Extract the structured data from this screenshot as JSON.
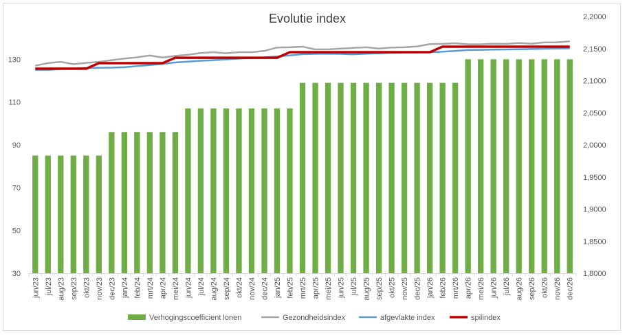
{
  "chart_data": {
    "type": "bar",
    "title": "Evolutie index",
    "xlabel": "",
    "ylabel": "",
    "categories": [
      "jun/23",
      "jul/23",
      "aug/23",
      "sep/23",
      "okt/23",
      "nov/23",
      "dec/23",
      "jan/24",
      "feb/24",
      "mrt/24",
      "apr/24",
      "mei/24",
      "jun/24",
      "jul/24",
      "aug/24",
      "sep/24",
      "okt/24",
      "nov/24",
      "dec/24",
      "jan/25",
      "feb/25",
      "mrt/25",
      "apr/25",
      "mei/25",
      "jun/25",
      "jul/25",
      "aug/25",
      "sep/25",
      "okt/25",
      "nov/25",
      "dec/25",
      "jan/26",
      "feb/26",
      "mrt/26",
      "apr/26",
      "mei/26",
      "jun/26",
      "jul/26",
      "aug/26",
      "sep/26",
      "okt/26",
      "nov/26",
      "dec/26"
    ],
    "y_left": {
      "min": 30,
      "max": 150,
      "ticks": [
        30,
        50,
        70,
        90,
        110,
        130
      ]
    },
    "y_right": {
      "min": 1.8,
      "max": 2.2,
      "ticks": [
        "1,8000",
        "1,8500",
        "1,9000",
        "1,9500",
        "2,0000",
        "2,0500",
        "2,1000",
        "2,1500",
        "2,2000"
      ]
    },
    "grid": false,
    "legend_position": "bottom",
    "series": [
      {
        "name": "Verhogingscoefficient lonen",
        "type": "bar",
        "axis": "left",
        "color": "#70ad47",
        "values": [
          85,
          85,
          85,
          85,
          85,
          85,
          96,
          96,
          96,
          96,
          96,
          96,
          107,
          107,
          107,
          107,
          107,
          107,
          107,
          107,
          107,
          119,
          119,
          119,
          119,
          119,
          119,
          119,
          119,
          119,
          119,
          119,
          119,
          119,
          130,
          130,
          130,
          130,
          130,
          130,
          130,
          130,
          130
        ]
      },
      {
        "name": "Gezondheidsindex",
        "type": "line",
        "axis": "left",
        "color": "#a5a5a5",
        "values": [
          127.0,
          128.2,
          128.8,
          127.7,
          128.3,
          128.8,
          129.6,
          130.3,
          130.9,
          131.8,
          130.8,
          131.6,
          132.1,
          132.9,
          133.3,
          132.8,
          133.3,
          133.3,
          133.9,
          135.5,
          135.6,
          135.9,
          134.6,
          134.6,
          135.0,
          135.3,
          135.6,
          135.0,
          135.5,
          135.6,
          136.0,
          137.1,
          137.2,
          137.5,
          137.0,
          137.0,
          137.3,
          137.2,
          137.6,
          137.3,
          137.9,
          137.9,
          138.4
        ]
      },
      {
        "name": "afgevlakte index",
        "type": "line",
        "axis": "left",
        "color": "#5b9bd5",
        "values": [
          125.0,
          125.0,
          125.5,
          125.7,
          125.9,
          126.0,
          126.1,
          126.3,
          126.8,
          127.3,
          127.8,
          128.5,
          128.9,
          129.3,
          129.6,
          129.9,
          130.3,
          130.6,
          130.9,
          131.3,
          131.8,
          132.4,
          132.5,
          132.6,
          132.5,
          132.3,
          132.6,
          132.8,
          133.0,
          133.1,
          133.2,
          133.3,
          133.5,
          133.9,
          134.3,
          134.4,
          134.5,
          134.6,
          134.7,
          134.8,
          134.9,
          135.0,
          135.1
        ]
      },
      {
        "name": "spilindex",
        "type": "line",
        "axis": "left",
        "color": "#c00000",
        "values": [
          125.6,
          125.6,
          125.6,
          125.6,
          125.6,
          128.2,
          128.2,
          128.2,
          128.2,
          128.2,
          128.2,
          130.7,
          130.7,
          130.7,
          130.7,
          130.7,
          130.7,
          130.7,
          130.7,
          130.7,
          133.3,
          133.3,
          133.3,
          133.3,
          133.3,
          133.3,
          133.3,
          133.3,
          133.3,
          133.3,
          133.3,
          133.3,
          135.9,
          135.9,
          135.9,
          135.9,
          135.9,
          135.9,
          135.9,
          135.9,
          135.9,
          135.9,
          135.9
        ]
      }
    ]
  }
}
